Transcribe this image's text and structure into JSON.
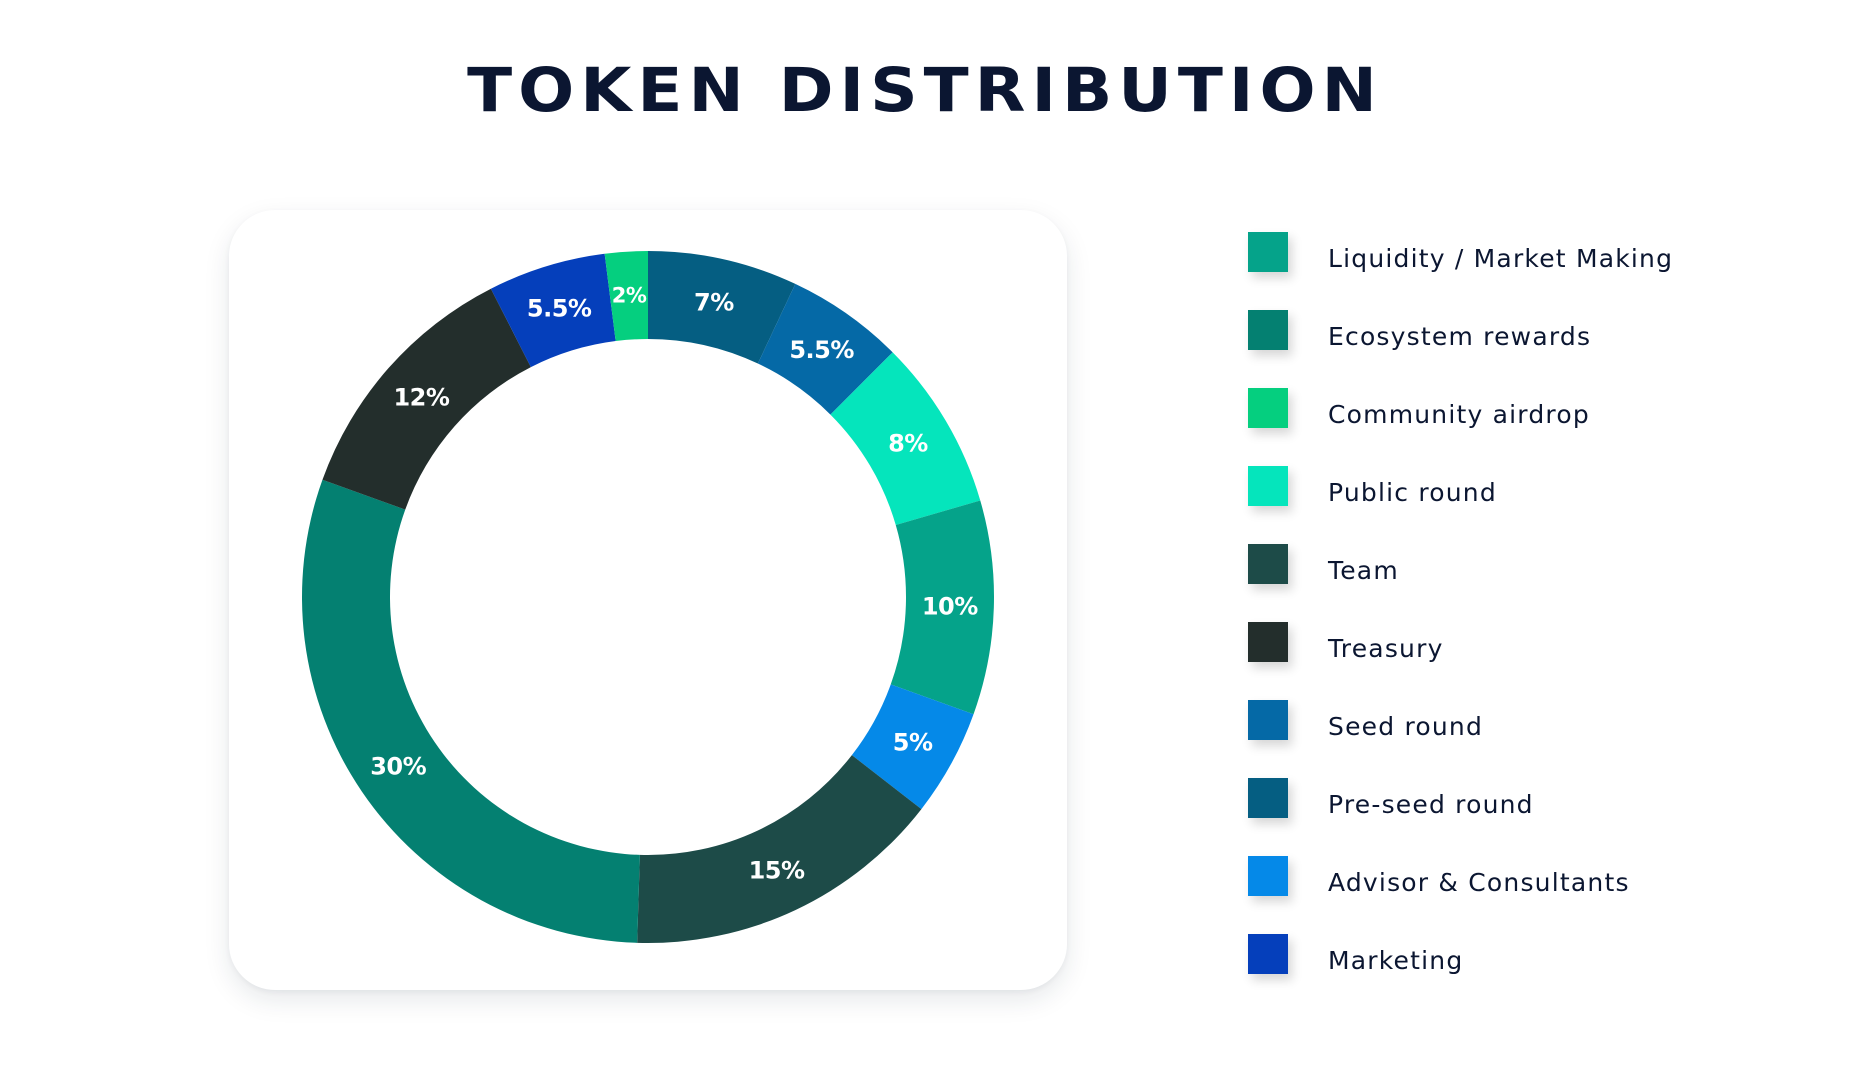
{
  "title": "TOKEN DISTRIBUTION",
  "chart_data": {
    "type": "pie",
    "title": "TOKEN DISTRIBUTION",
    "donut": true,
    "legend_position": "right",
    "slices": [
      {
        "name": "Pre-seed round",
        "value": 7,
        "label": "7%",
        "color": "#055e82"
      },
      {
        "name": "Seed round",
        "value": 5.5,
        "label": "5.5%",
        "color": "#0569a6"
      },
      {
        "name": "Public round",
        "value": 8,
        "label": "8%",
        "color": "#05e5bc"
      },
      {
        "name": "Liquidity / Market Making",
        "value": 10,
        "label": "10%",
        "color": "#05a38a"
      },
      {
        "name": "Advisor & Consultants",
        "value": 5,
        "label": "5%",
        "color": "#0589e8"
      },
      {
        "name": "Team",
        "value": 15,
        "label": "15%",
        "color": "#1d4b48"
      },
      {
        "name": "Ecosystem rewards",
        "value": 30,
        "label": "30%",
        "color": "#048071"
      },
      {
        "name": "Treasury",
        "value": 12,
        "label": "12%",
        "color": "#232e2c"
      },
      {
        "name": "Marketing",
        "value": 5.5,
        "label": "5.5%",
        "color": "#053fbb"
      },
      {
        "name": "Community airdrop",
        "value": 2,
        "label": "2%",
        "color": "#05cf7f"
      }
    ],
    "legend": [
      {
        "label": "Liquidity / Market Making",
        "color": "#05a38a"
      },
      {
        "label": "Ecosystem rewards",
        "color": "#048071"
      },
      {
        "label": "Community airdrop",
        "color": "#05cf7f"
      },
      {
        "label": "Public round",
        "color": "#05e5bc"
      },
      {
        "label": "Team",
        "color": "#1d4b48"
      },
      {
        "label": "Treasury",
        "color": "#232e2c"
      },
      {
        "label": "Seed round",
        "color": "#0569a6"
      },
      {
        "label": "Pre-seed round",
        "color": "#055e82"
      },
      {
        "label": "Advisor & Consultants",
        "color": "#0589e8"
      },
      {
        "label": "Marketing",
        "color": "#053fbb"
      }
    ]
  }
}
